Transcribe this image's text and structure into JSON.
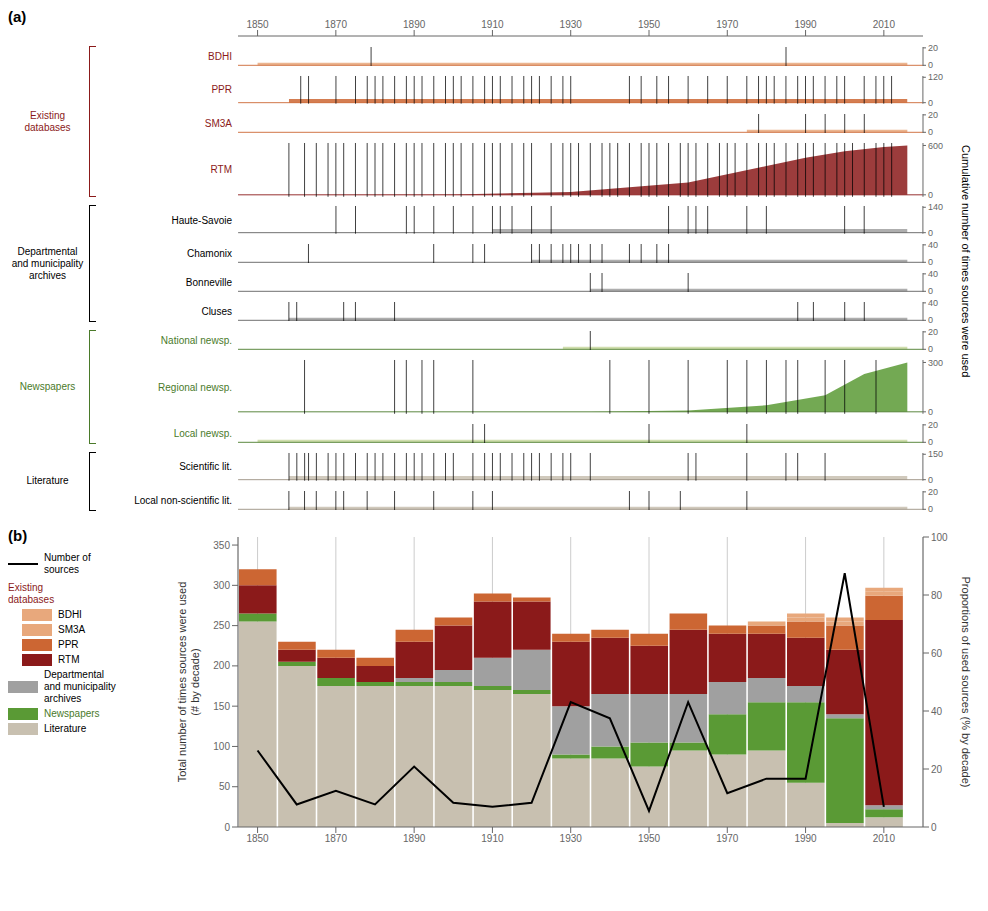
{
  "chart_data": [
    {
      "type": "timeline",
      "title": "(a)",
      "y2_label": "Cumulative number of times sources were used",
      "xlim": [
        1845,
        2020
      ],
      "xticks": [
        1850,
        1870,
        1890,
        1910,
        1930,
        1950,
        1970,
        1990,
        2010
      ],
      "groups": [
        {
          "name": "Existing\ndatabases",
          "color": "#8b1a1a",
          "row_start": 0,
          "row_end": 3
        },
        {
          "name": "Departmental\nand municipality\narchives",
          "color": "#000000",
          "row_start": 4,
          "row_end": 7
        },
        {
          "name": "Newspapers",
          "color": "#4a7a2a",
          "row_start": 8,
          "row_end": 10
        },
        {
          "name": "Literature",
          "color": "#000000",
          "row_start": 11,
          "row_end": 12
        }
      ],
      "rows": [
        {
          "label": "BDHI",
          "label_color": "#8b1a1a",
          "color": "#e8a87c",
          "line_color": "#cc6633",
          "band": [
            1850,
            2016
          ],
          "ylim": [
            -0.8,
            21
          ],
          "yticks": [
            0,
            20
          ],
          "events": [
            1879,
            1985
          ]
        },
        {
          "label": "PPR",
          "label_color": "#8b1a1a",
          "color": "#cc6633",
          "line_color": "#cc6633",
          "band": [
            1858,
            2016
          ],
          "ylim": [
            -4.8,
            126
          ],
          "yticks": [
            0,
            120
          ],
          "events": [
            1861,
            1863,
            1870,
            1875,
            1878,
            1880,
            1882,
            1885,
            1888,
            1890,
            1892,
            1895,
            1898,
            1900,
            1902,
            1905,
            1908,
            1910,
            1912,
            1915,
            1918,
            1920,
            1922,
            1925,
            1928,
            1930,
            1945,
            1948,
            1952,
            1955,
            1960,
            1965,
            1970,
            1975,
            1978,
            1980,
            1982,
            1985,
            1988,
            1990,
            1992,
            1995,
            1998,
            2000,
            2005,
            2008,
            2010,
            2012
          ]
        },
        {
          "label": "SM3A",
          "label_color": "#8b1a1a",
          "color": "#e8a87c",
          "line_color": "#cc6633",
          "band": [
            1975,
            2016
          ],
          "ylim": [
            -0.8,
            21
          ],
          "yticks": [
            0,
            20
          ],
          "events": [
            1978,
            1990,
            1995,
            2000,
            2005
          ]
        },
        {
          "label": "RTM",
          "label_color": "#8b1a1a",
          "color": "#8b1a1a",
          "line_color": "#8b1a1a",
          "cumulative": true,
          "x": [
            1858,
            1900,
            1930,
            1960,
            1980,
            1990,
            2000,
            2010,
            2016
          ],
          "values": [
            0,
            5,
            35,
            150,
            350,
            450,
            530,
            580,
            600
          ],
          "ylim": [
            -24,
            630
          ],
          "yticks": [
            0,
            600
          ],
          "events": [
            1858,
            1862,
            1865,
            1868,
            1870,
            1872,
            1875,
            1878,
            1880,
            1882,
            1885,
            1888,
            1890,
            1892,
            1895,
            1898,
            1900,
            1902,
            1905,
            1908,
            1910,
            1912,
            1915,
            1918,
            1920,
            1925,
            1928,
            1930,
            1932,
            1935,
            1938,
            1940,
            1942,
            1945,
            1948,
            1950,
            1952,
            1955,
            1958,
            1960,
            1962,
            1965,
            1968,
            1970,
            1972,
            1975,
            1978,
            1980,
            1982,
            1985,
            1988,
            1990,
            1992,
            1995,
            1998,
            2000,
            2002,
            2005,
            2008,
            2010,
            2012
          ]
        },
        {
          "label": "Haute-Savoie",
          "label_color": "#000000",
          "color": "#a0a0a0",
          "line_color": "#606060",
          "band": [
            1910,
            2016
          ],
          "ylim": [
            -5.6,
            147
          ],
          "yticks": [
            0,
            140
          ],
          "events": [
            1870,
            1875,
            1888,
            1890,
            1895,
            1900,
            1905,
            1910,
            1912,
            1915,
            1920,
            1925,
            1955,
            1960,
            1962,
            1965,
            1975,
            1980,
            2000,
            2005
          ]
        },
        {
          "label": "Chamonix",
          "label_color": "#000000",
          "color": "#a0a0a0",
          "line_color": "#606060",
          "band": [
            1920,
            2016
          ],
          "ylim": [
            -1.6,
            42
          ],
          "yticks": [
            0,
            40
          ],
          "events": [
            1863,
            1895,
            1905,
            1908,
            1920,
            1922,
            1925,
            1928,
            1930,
            1932,
            1935,
            1938,
            1945,
            1948,
            1952,
            1955
          ]
        },
        {
          "label": "Bonneville",
          "label_color": "#000000",
          "color": "#a0a0a0",
          "line_color": "#606060",
          "band": [
            1935,
            2016
          ],
          "ylim": [
            -1.6,
            42
          ],
          "yticks": [
            0,
            40
          ],
          "events": [
            1935,
            1938,
            1960
          ]
        },
        {
          "label": "Cluses",
          "label_color": "#000000",
          "color": "#a0a0a0",
          "line_color": "#606060",
          "band": [
            1858,
            2016
          ],
          "ylim": [
            -1.6,
            42
          ],
          "yticks": [
            0,
            40
          ],
          "events": [
            1858,
            1860,
            1872,
            1875,
            1885,
            1988,
            1992,
            2000,
            2005
          ]
        },
        {
          "label": "National newsp.",
          "label_color": "#4a7a2a",
          "color": "#c8d8a0",
          "line_color": "#4a7a2a",
          "band": [
            1928,
            2016
          ],
          "ylim": [
            -0.8,
            21
          ],
          "yticks": [
            0,
            20
          ],
          "events": [
            1935
          ]
        },
        {
          "label": "Regional newsp.",
          "label_color": "#4a7a2a",
          "color": "#5a9a35",
          "line_color": "#4a7a2a",
          "cumulative": true,
          "x": [
            1850,
            1935,
            1960,
            1980,
            1995,
            2005,
            2016
          ],
          "values": [
            0,
            0,
            8,
            40,
            100,
            230,
            300
          ],
          "ylim": [
            -12,
            315
          ],
          "yticks": [
            0,
            300
          ],
          "events": [
            1862,
            1885,
            1888,
            1892,
            1895,
            1905,
            1940,
            1950,
            1960,
            1970,
            1975,
            1980,
            1985,
            1988,
            1995,
            2000,
            2008
          ]
        },
        {
          "label": "Local newsp.",
          "label_color": "#4a7a2a",
          "color": "#c8d8a0",
          "line_color": "#4a7a2a",
          "band": [
            1850,
            2016
          ],
          "ylim": [
            -0.8,
            21
          ],
          "yticks": [
            0,
            20
          ],
          "events": [
            1905,
            1908,
            1950,
            1975
          ]
        },
        {
          "label": "Scientific lit.",
          "label_color": "#000000",
          "color": "#c8c0b0",
          "line_color": "#9a9080",
          "band": [
            1858,
            2016
          ],
          "ylim": [
            -6,
            157.5
          ],
          "yticks": [
            0,
            150
          ],
          "events": [
            1858,
            1860,
            1862,
            1863,
            1865,
            1868,
            1870,
            1872,
            1875,
            1878,
            1880,
            1882,
            1885,
            1888,
            1890,
            1892,
            1895,
            1898,
            1900,
            1905,
            1908,
            1910,
            1912,
            1915,
            1918,
            1920,
            1922,
            1925,
            1928,
            1930,
            1935,
            1960,
            1962,
            1975,
            1985,
            1988,
            1995
          ]
        },
        {
          "label": "Local non-scientific lit.",
          "label_color": "#000000",
          "color": "#c8c0b0",
          "line_color": "#9a9080",
          "band": [
            1858,
            2016
          ],
          "ylim": [
            -0.8,
            21
          ],
          "yticks": [
            0,
            20
          ],
          "events": [
            1858,
            1862,
            1865,
            1870,
            1872,
            1878,
            1885,
            1895,
            1905,
            1910,
            1945,
            1950,
            1958,
            1975
          ]
        }
      ]
    },
    {
      "type": "bar",
      "stacked": true,
      "title": "(b)",
      "grid": true,
      "legend": "left",
      "x": [
        1850,
        1860,
        1870,
        1880,
        1890,
        1900,
        1910,
        1920,
        1930,
        1940,
        1950,
        1960,
        1970,
        1980,
        1990,
        2000,
        2010
      ],
      "xlim": [
        1845,
        2020
      ],
      "xticks": [
        1850,
        1870,
        1890,
        1910,
        1930,
        1950,
        1970,
        1990,
        2010
      ],
      "ylim": [
        0,
        360
      ],
      "yticks": [
        0,
        50,
        100,
        150,
        200,
        250,
        300,
        350
      ],
      "y_label": "Total number of times sources were used\n(# by decade)",
      "y2lim": [
        0,
        100
      ],
      "y2ticks": [
        0,
        20,
        40,
        60,
        80,
        100
      ],
      "y2_label": "Proportions of used sources (% by decade)",
      "legend_group": {
        "name": "Existing\ndatabases",
        "color": "#8b1a1a",
        "series": [
          "BDHI",
          "SM3A",
          "PPR",
          "RTM"
        ]
      },
      "series": [
        {
          "name": "Literature",
          "type": "bar",
          "color": "#c8c0b0",
          "values": [
            255,
            200,
            175,
            175,
            175,
            175,
            170,
            165,
            85,
            85,
            75,
            95,
            90,
            95,
            55,
            5,
            12
          ]
        },
        {
          "name": "Newspapers",
          "type": "bar",
          "color": "#5a9a35",
          "label_color": "#4a7a2a",
          "values": [
            10,
            5,
            10,
            5,
            5,
            5,
            5,
            5,
            5,
            15,
            30,
            10,
            50,
            60,
            100,
            130,
            10
          ]
        },
        {
          "name": "Departmental\nand municipality\narchives",
          "type": "bar",
          "color": "#a0a0a0",
          "values": [
            0,
            0,
            0,
            0,
            5,
            15,
            35,
            50,
            60,
            65,
            60,
            60,
            40,
            30,
            20,
            5,
            5
          ]
        },
        {
          "name": "RTM",
          "type": "bar",
          "color": "#8b1a1a",
          "values": [
            35,
            15,
            25,
            20,
            45,
            55,
            70,
            60,
            80,
            70,
            60,
            80,
            60,
            55,
            60,
            80,
            230
          ]
        },
        {
          "name": "PPR",
          "type": "bar",
          "color": "#cc6633",
          "values": [
            20,
            10,
            10,
            10,
            15,
            10,
            10,
            5,
            10,
            10,
            15,
            20,
            10,
            10,
            20,
            30,
            30
          ]
        },
        {
          "name": "SM3A",
          "type": "bar",
          "color": "#e8a87c",
          "values": [
            0,
            0,
            0,
            0,
            0,
            0,
            0,
            0,
            0,
            0,
            0,
            0,
            0,
            5,
            5,
            5,
            5
          ]
        },
        {
          "name": "BDHI",
          "type": "bar",
          "color": "#e8a87c",
          "values": [
            0,
            0,
            0,
            0,
            0,
            0,
            0,
            0,
            0,
            0,
            0,
            0,
            0,
            0,
            5,
            5,
            5
          ]
        },
        {
          "name": "Number of\nsources",
          "type": "line",
          "color": "#000000",
          "values": [
            95,
            28,
            45,
            28,
            75,
            30,
            25,
            30,
            155,
            135,
            20,
            155,
            42,
            60,
            60,
            315,
            25
          ]
        }
      ]
    }
  ]
}
